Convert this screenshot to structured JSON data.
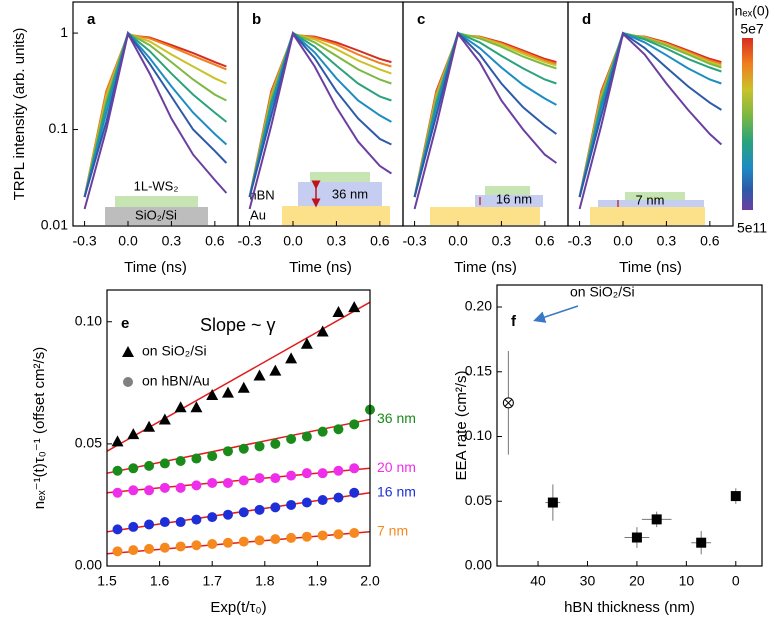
{
  "colorbar": {
    "title": "nₑₓ(0)",
    "top": "5e7",
    "bottom": "5e11",
    "colors": [
      "#d62d20",
      "#f07f1e",
      "#c9c22a",
      "#7cb842",
      "#2aa37a",
      "#1e8cc4",
      "#2d5aa8",
      "#6b3fa0"
    ]
  },
  "chart_data": [
    {
      "type": "line",
      "panel": "a",
      "log_y": true,
      "y_label": "TRPL intensity (arb. units)",
      "x_label": "Time (ns)",
      "xlim": [
        -0.38,
        0.76
      ],
      "ylim": [
        0.01,
        2.1
      ],
      "xticks": [
        -0.3,
        {
          "value": 0,
          "label": "0.0"
        },
        0.3,
        0.6
      ],
      "yticks": [
        0.01,
        0.1,
        1
      ],
      "annotations": [
        "1L-WS₂",
        "SiO₂/Si"
      ],
      "x": [
        -0.3,
        -0.15,
        0,
        0.15,
        0.3,
        0.45,
        0.6,
        0.68
      ],
      "series": [
        {
          "color": "#d62d20",
          "values": [
            0.02,
            0.25,
            0.95,
            0.9,
            0.75,
            0.62,
            0.5,
            0.45
          ]
        },
        {
          "color": "#f07f1e",
          "values": [
            0.02,
            0.25,
            0.97,
            0.88,
            0.72,
            0.58,
            0.47,
            0.42
          ]
        },
        {
          "color": "#c9c22a",
          "values": [
            0.02,
            0.22,
            0.98,
            0.82,
            0.6,
            0.45,
            0.34,
            0.3
          ]
        },
        {
          "color": "#7cb842",
          "values": [
            0.02,
            0.2,
            1,
            0.75,
            0.5,
            0.33,
            0.23,
            0.2
          ]
        },
        {
          "color": "#2aa37a",
          "values": [
            0.02,
            0.18,
            1,
            0.65,
            0.38,
            0.23,
            0.15,
            0.12
          ]
        },
        {
          "color": "#1e8cc4",
          "values": [
            0.02,
            0.15,
            1,
            0.55,
            0.28,
            0.15,
            0.09,
            0.07
          ]
        },
        {
          "color": "#2d5aa8",
          "values": [
            0.02,
            0.12,
            1,
            0.48,
            0.22,
            0.1,
            0.06,
            0.045
          ]
        },
        {
          "color": "#6b3fa0",
          "values": [
            0.015,
            0.1,
            0.98,
            0.38,
            0.13,
            0.055,
            0.03,
            0.022
          ]
        }
      ]
    },
    {
      "type": "line",
      "panel": "b",
      "log_y": true,
      "x_label": "Time (ns)",
      "xlim": [
        -0.38,
        0.76
      ],
      "ylim": [
        0.01,
        2.1
      ],
      "xticks": [
        -0.3,
        {
          "value": 0,
          "label": "0.0"
        },
        0.3,
        0.6
      ],
      "annotations": [
        "hBN",
        "36 nm",
        "Au"
      ],
      "x": [
        -0.3,
        -0.15,
        0,
        0.15,
        0.3,
        0.45,
        0.6,
        0.68
      ],
      "series": [
        {
          "color": "#d62d20",
          "values": [
            0.02,
            0.25,
            0.95,
            0.92,
            0.8,
            0.66,
            0.54,
            0.5
          ]
        },
        {
          "color": "#f07f1e",
          "values": [
            0.02,
            0.24,
            0.97,
            0.9,
            0.76,
            0.6,
            0.49,
            0.45
          ]
        },
        {
          "color": "#c9c22a",
          "values": [
            0.02,
            0.22,
            0.98,
            0.86,
            0.68,
            0.52,
            0.42,
            0.38
          ]
        },
        {
          "color": "#7cb842",
          "values": [
            0.02,
            0.21,
            1,
            0.8,
            0.58,
            0.42,
            0.33,
            0.3
          ]
        },
        {
          "color": "#2aa37a",
          "values": [
            0.02,
            0.19,
            1,
            0.72,
            0.46,
            0.3,
            0.22,
            0.2
          ]
        },
        {
          "color": "#1e8cc4",
          "values": [
            0.02,
            0.17,
            1,
            0.63,
            0.34,
            0.2,
            0.14,
            0.12
          ]
        },
        {
          "color": "#2d5aa8",
          "values": [
            0.02,
            0.14,
            1,
            0.55,
            0.25,
            0.13,
            0.08,
            0.07
          ]
        },
        {
          "color": "#6b3fa0",
          "values": [
            0.015,
            0.11,
            0.98,
            0.45,
            0.17,
            0.075,
            0.042,
            0.035
          ]
        }
      ]
    },
    {
      "type": "line",
      "panel": "c",
      "log_y": true,
      "x_label": "Time (ns)",
      "xlim": [
        -0.38,
        0.76
      ],
      "ylim": [
        0.01,
        2.1
      ],
      "xticks": [
        -0.3,
        {
          "value": 0,
          "label": "0.0"
        },
        0.3,
        0.6
      ],
      "annotations": [
        "16 nm"
      ],
      "x": [
        -0.3,
        -0.15,
        0,
        0.15,
        0.3,
        0.45,
        0.6,
        0.68
      ],
      "series": [
        {
          "color": "#d62d20",
          "values": [
            0.02,
            0.25,
            0.95,
            0.92,
            0.8,
            0.66,
            0.54,
            0.5
          ]
        },
        {
          "color": "#f07f1e",
          "values": [
            0.02,
            0.24,
            0.97,
            0.91,
            0.78,
            0.64,
            0.52,
            0.48
          ]
        },
        {
          "color": "#c9c22a",
          "values": [
            0.02,
            0.22,
            0.98,
            0.9,
            0.76,
            0.61,
            0.5,
            0.46
          ]
        },
        {
          "color": "#7cb842",
          "values": [
            0.02,
            0.21,
            1,
            0.88,
            0.72,
            0.57,
            0.47,
            0.43
          ]
        },
        {
          "color": "#2aa37a",
          "values": [
            0.02,
            0.19,
            1,
            0.8,
            0.58,
            0.43,
            0.33,
            0.3
          ]
        },
        {
          "color": "#1e8cc4",
          "values": [
            0.02,
            0.17,
            1,
            0.7,
            0.44,
            0.29,
            0.21,
            0.18
          ]
        },
        {
          "color": "#2d5aa8",
          "values": [
            0.02,
            0.14,
            1,
            0.6,
            0.3,
            0.17,
            0.11,
            0.09
          ]
        },
        {
          "color": "#6b3fa0",
          "values": [
            0.015,
            0.11,
            0.98,
            0.5,
            0.2,
            0.1,
            0.055,
            0.045
          ]
        }
      ]
    },
    {
      "type": "line",
      "panel": "d",
      "log_y": true,
      "x_label": "Time (ns)",
      "xlim": [
        -0.38,
        0.76
      ],
      "ylim": [
        0.01,
        2.1
      ],
      "xticks": [
        -0.3,
        {
          "value": 0,
          "label": "0.0"
        },
        0.3,
        0.6
      ],
      "annotations": [
        "7 nm"
      ],
      "x": [
        -0.3,
        -0.15,
        0,
        0.15,
        0.3,
        0.45,
        0.6,
        0.68
      ],
      "series": [
        {
          "color": "#d62d20",
          "values": [
            0.02,
            0.25,
            0.95,
            0.92,
            0.8,
            0.66,
            0.54,
            0.5
          ]
        },
        {
          "color": "#f07f1e",
          "values": [
            0.02,
            0.24,
            0.97,
            0.91,
            0.78,
            0.64,
            0.52,
            0.48
          ]
        },
        {
          "color": "#c9c22a",
          "values": [
            0.02,
            0.22,
            0.98,
            0.9,
            0.76,
            0.62,
            0.5,
            0.46
          ]
        },
        {
          "color": "#7cb842",
          "values": [
            0.02,
            0.21,
            1,
            0.89,
            0.74,
            0.6,
            0.48,
            0.44
          ]
        },
        {
          "color": "#2aa37a",
          "values": [
            0.02,
            0.19,
            1,
            0.86,
            0.69,
            0.54,
            0.44,
            0.4
          ]
        },
        {
          "color": "#1e8cc4",
          "values": [
            0.02,
            0.17,
            1,
            0.8,
            0.59,
            0.43,
            0.33,
            0.3
          ]
        },
        {
          "color": "#2d5aa8",
          "values": [
            0.02,
            0.14,
            1,
            0.7,
            0.44,
            0.28,
            0.19,
            0.16
          ]
        },
        {
          "color": "#6b3fa0",
          "values": [
            0.015,
            0.11,
            0.98,
            0.6,
            0.3,
            0.16,
            0.09,
            0.07
          ]
        }
      ]
    },
    {
      "type": "scatter",
      "panel": "e",
      "y_label": "nₑₓ⁻¹(t)τ₀⁻¹ (offset cm²/s)",
      "x_label": "Exp(t/τ₀)",
      "annotation": "Slope ~ γ",
      "fit_color": "#e31a1c",
      "xlim": [
        1.5,
        2.0
      ],
      "ylim": [
        0,
        0.113
      ],
      "xticks": [
        1.5,
        1.6,
        1.7,
        1.8,
        1.9,
        {
          "value": 2.0,
          "label": "2.0"
        }
      ],
      "yticks": [
        {
          "value": 0,
          "label": "0.00"
        },
        0.05,
        {
          "value": 0.1,
          "label": "0.10"
        }
      ],
      "legend": [
        {
          "label": "on SiO₂/Si",
          "marker": "triangle",
          "color": "#000000"
        },
        {
          "label": "on hBN/Au",
          "marker": "circle",
          "color": "#808080"
        }
      ],
      "series": [
        {
          "marker": "triangle",
          "color": "#000000",
          "fit": [
            0.047,
            0.108
          ],
          "x": [
            1.52,
            1.55,
            1.58,
            1.61,
            1.64,
            1.67,
            1.7,
            1.73,
            1.76,
            1.79,
            1.82,
            1.85,
            1.88,
            1.91,
            1.94,
            1.97
          ],
          "values": [
            0.051,
            0.054,
            0.057,
            0.06,
            0.065,
            0.065,
            0.07,
            0.071,
            0.073,
            0.078,
            0.08,
            0.085,
            0.091,
            0.096,
            0.104,
            0.106
          ]
        },
        {
          "name": "36 nm",
          "marker": "circle",
          "color": "#1a8a1a",
          "fit": [
            0.038,
            0.06
          ],
          "x": [
            1.52,
            1.55,
            1.58,
            1.61,
            1.64,
            1.67,
            1.7,
            1.73,
            1.76,
            1.79,
            1.82,
            1.85,
            1.88,
            1.91,
            1.94,
            1.97,
            2.0
          ],
          "values": [
            0.039,
            0.04,
            0.041,
            0.042,
            0.043,
            0.044,
            0.045,
            0.047,
            0.048,
            0.049,
            0.05,
            0.052,
            0.053,
            0.055,
            0.056,
            0.058,
            0.064
          ]
        },
        {
          "name": "20 nm",
          "marker": "circle",
          "color": "#ee2ee8",
          "fit": [
            0.03,
            0.04
          ],
          "x": [
            1.52,
            1.55,
            1.58,
            1.61,
            1.64,
            1.67,
            1.7,
            1.73,
            1.76,
            1.79,
            1.82,
            1.85,
            1.88,
            1.91,
            1.94,
            1.97
          ],
          "values": [
            0.03,
            0.031,
            0.031,
            0.032,
            0.032,
            0.033,
            0.034,
            0.034,
            0.035,
            0.036,
            0.036,
            0.037,
            0.038,
            0.038,
            0.039,
            0.04
          ]
        },
        {
          "name": "16 nm",
          "marker": "circle",
          "color": "#1f2fd8",
          "fit": [
            0.014,
            0.03
          ],
          "x": [
            1.52,
            1.55,
            1.58,
            1.61,
            1.64,
            1.67,
            1.7,
            1.73,
            1.76,
            1.79,
            1.82,
            1.85,
            1.88,
            1.91,
            1.94,
            1.97
          ],
          "values": [
            0.015,
            0.016,
            0.017,
            0.018,
            0.018,
            0.019,
            0.02,
            0.021,
            0.022,
            0.023,
            0.024,
            0.025,
            0.026,
            0.027,
            0.028,
            0.03
          ]
        },
        {
          "name": "7 nm",
          "marker": "circle",
          "color": "#f5891f",
          "fit": [
            0.005,
            0.014
          ],
          "x": [
            1.52,
            1.55,
            1.58,
            1.61,
            1.64,
            1.67,
            1.7,
            1.73,
            1.76,
            1.79,
            1.82,
            1.85,
            1.88,
            1.91,
            1.94,
            1.97
          ],
          "values": [
            0.006,
            0.0065,
            0.007,
            0.0075,
            0.008,
            0.0085,
            0.009,
            0.0095,
            0.01,
            0.0105,
            0.011,
            0.0115,
            0.012,
            0.0125,
            0.013,
            0.0135
          ]
        }
      ]
    },
    {
      "type": "errorbar",
      "panel": "f",
      "y_label": "EEA rate (cm²/s)",
      "x_label": "hBN thickness (nm)",
      "annotation": "on SiO₂/Si",
      "color": "#000000",
      "xlim": [
        48.3,
        -5.3
      ],
      "ylim": [
        0,
        0.217
      ],
      "xticks": [
        40,
        30,
        20,
        10,
        0
      ],
      "yticks": [
        {
          "value": 0,
          "label": "0.00"
        },
        0.05,
        {
          "value": 0.1,
          "label": "0.10"
        },
        0.15,
        {
          "value": 0.2,
          "label": "0.20"
        }
      ],
      "markers": [
        "crossed-circle",
        "square",
        "square",
        "square",
        "square",
        "square"
      ],
      "x": [
        46,
        37,
        20,
        16,
        7,
        0
      ],
      "xerr": [
        0,
        1.5,
        2.5,
        3,
        2,
        0.5
      ],
      "values": [
        0.126,
        0.049,
        0.022,
        0.036,
        0.018,
        0.054
      ],
      "yerr": [
        0.04,
        0.014,
        0.008,
        0.006,
        0.009,
        0.006
      ]
    }
  ]
}
